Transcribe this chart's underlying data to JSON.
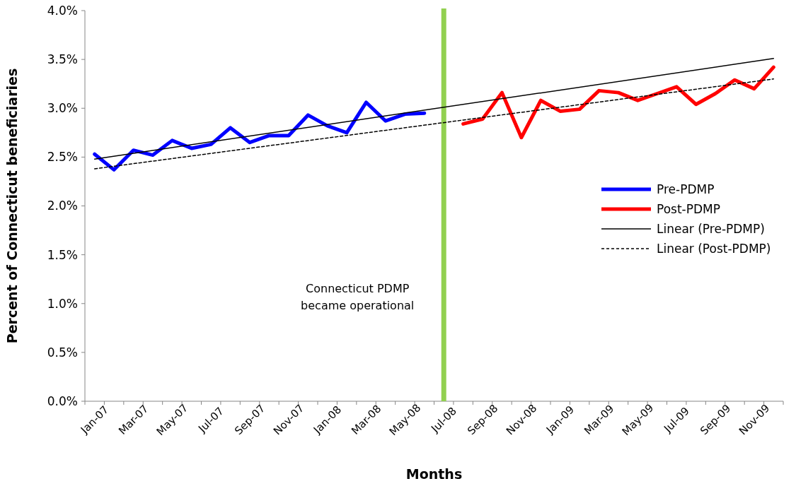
{
  "chart_data": {
    "type": "line",
    "xlabel": "Months",
    "ylabel": "Percent of Connecticut beneficiaries",
    "categories": [
      "Jan-07",
      null,
      "Mar-07",
      null,
      "May-07",
      null,
      "Jul-07",
      null,
      "Sep-07",
      null,
      "Nov-07",
      null,
      "Jan-08",
      null,
      "Mar-08",
      null,
      "May-08",
      null,
      "Jul-08",
      null,
      "Sep-08",
      null,
      "Nov-08",
      null,
      "Jan-09",
      null,
      "Mar-09",
      null,
      "May-09",
      null,
      "Jul-09",
      null,
      "Sep-09",
      null,
      "Nov-09",
      null
    ],
    "series": [
      {
        "name": "Pre-PDMP",
        "color": "#0000ff",
        "values": [
          2.53,
          2.37,
          2.57,
          2.52,
          2.67,
          2.59,
          2.63,
          2.8,
          2.65,
          2.72,
          2.72,
          2.93,
          2.82,
          2.75,
          3.06,
          2.87,
          2.94,
          2.95,
          null,
          null,
          null,
          null,
          null,
          null,
          null,
          null,
          null,
          null,
          null,
          null,
          null,
          null,
          null,
          null,
          null,
          null
        ]
      },
      {
        "name": "Post-PDMP",
        "color": "#ff0000",
        "values": [
          null,
          null,
          null,
          null,
          null,
          null,
          null,
          null,
          null,
          null,
          null,
          null,
          null,
          null,
          null,
          null,
          null,
          null,
          null,
          2.84,
          2.89,
          3.16,
          2.7,
          3.08,
          2.97,
          2.99,
          3.18,
          3.16,
          3.08,
          3.15,
          3.22,
          3.04,
          3.15,
          3.29,
          3.2,
          3.42
        ]
      },
      {
        "name": "Linear (Pre-PDMP)",
        "color": "#000000",
        "line_style": "solid",
        "values": [
          2.48,
          null,
          null,
          null,
          null,
          null,
          null,
          null,
          null,
          null,
          null,
          null,
          null,
          null,
          null,
          null,
          null,
          null,
          null,
          null,
          null,
          null,
          null,
          null,
          null,
          null,
          null,
          null,
          null,
          null,
          null,
          null,
          null,
          null,
          null,
          3.51
        ]
      },
      {
        "name": "Linear (Post-PDMP)",
        "color": "#000000",
        "line_style": "dashed",
        "values": [
          2.38,
          null,
          null,
          null,
          null,
          null,
          null,
          null,
          null,
          null,
          null,
          null,
          null,
          null,
          null,
          null,
          null,
          null,
          null,
          null,
          null,
          null,
          null,
          null,
          null,
          null,
          null,
          null,
          null,
          null,
          null,
          null,
          null,
          null,
          null,
          3.3
        ]
      }
    ],
    "ylim": [
      0,
      4
    ],
    "yticks": [
      {
        "value": 0,
        "label": "0.0%"
      },
      {
        "value": 0.5,
        "label": "0.5%"
      },
      {
        "value": 1,
        "label": "1.0%"
      },
      {
        "value": 1.5,
        "label": "1.5%"
      },
      {
        "value": 2,
        "label": "2.0%"
      },
      {
        "value": 2.5,
        "label": "2.5%"
      },
      {
        "value": 3,
        "label": "3.0%"
      },
      {
        "value": 3.5,
        "label": "3.5%"
      },
      {
        "value": 4,
        "label": "4.0%"
      }
    ],
    "ref_lines": [
      {
        "axis": "x",
        "value": "Jul-08",
        "label": "Connecticut PDMP became operational",
        "color": "#92d050"
      }
    ],
    "grid": false,
    "legend": "right",
    "marker": "none"
  }
}
